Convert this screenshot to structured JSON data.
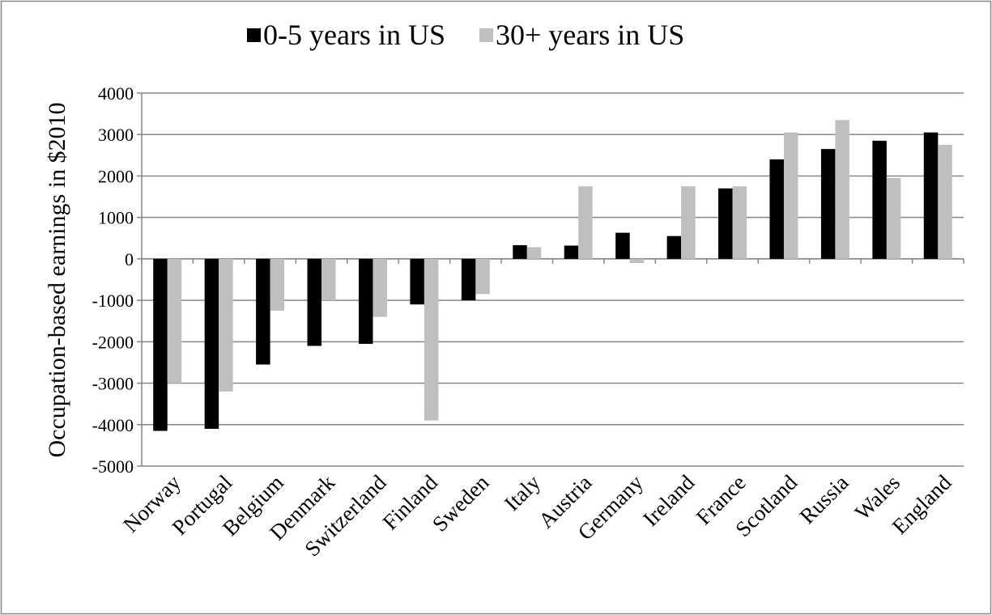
{
  "chart_data": {
    "type": "bar",
    "y_label": "Occupation-based earnings in $2010",
    "categories": [
      "Norway",
      "Portugal",
      "Belgium",
      "Denmark",
      "Switzerland",
      "Finland",
      "Sweden",
      "Italy",
      "Austria",
      "Germany",
      "Ireland",
      "France",
      "Scotland",
      "Russia",
      "Wales",
      "England"
    ],
    "series": [
      {
        "name": "0-5 years in US",
        "color": "#000000",
        "values": [
          -4150,
          -4100,
          -2550,
          -2100,
          -2050,
          -1100,
          -1000,
          330,
          320,
          630,
          550,
          1700,
          2400,
          2650,
          2850,
          3050
        ]
      },
      {
        "name": "30+ years in US",
        "color": "#bfbfbf",
        "values": [
          -3000,
          -3200,
          -1250,
          -1000,
          -1400,
          -3900,
          -850,
          280,
          1750,
          -100,
          1750,
          1750,
          3050,
          3350,
          1950,
          2750
        ]
      }
    ],
    "ylim": [
      -5000,
      4000
    ],
    "yticks": [
      -5000,
      -4000,
      -3000,
      -2000,
      -1000,
      0,
      1000,
      2000,
      3000,
      4000
    ],
    "grid": true,
    "legend": "top"
  }
}
